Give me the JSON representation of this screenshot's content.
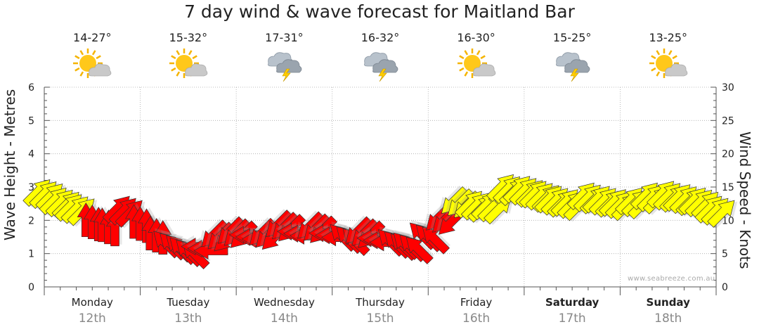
{
  "chart_data": {
    "type": "line",
    "title": "7 day wind & wave forecast for Maitland Bar",
    "ylabel": "Wave Height - Metres",
    "y2label": "Wind Speed - Knots",
    "ylim": [
      0,
      6
    ],
    "y2lim": [
      0,
      30
    ],
    "yticks": [
      "0",
      "1",
      "2",
      "3",
      "4",
      "5",
      "6"
    ],
    "y2ticks": [
      "0",
      "5",
      "10",
      "15",
      "20",
      "25",
      "30"
    ],
    "days": [
      {
        "name": "Monday",
        "date": "12th",
        "temp": "14-27°",
        "icon": "partly-cloudy-sun-icon",
        "bold": false
      },
      {
        "name": "Tuesday",
        "date": "13th",
        "temp": "15-32°",
        "icon": "partly-cloudy-sun-icon",
        "bold": false
      },
      {
        "name": "Wednesday",
        "date": "14th",
        "temp": "17-31°",
        "icon": "thunderstorm-icon",
        "bold": false
      },
      {
        "name": "Thursday",
        "date": "15th",
        "temp": "16-32°",
        "icon": "thunderstorm-icon",
        "bold": false
      },
      {
        "name": "Friday",
        "date": "16th",
        "temp": "16-30°",
        "icon": "partly-cloudy-sun-icon",
        "bold": false
      },
      {
        "name": "Saturday",
        "date": "17th",
        "temp": "15-25°",
        "icon": "thunderstorm-icon",
        "bold": true
      },
      {
        "name": "Sunday",
        "date": "18th",
        "temp": "13-25°",
        "icon": "partly-cloudy-sun-icon",
        "bold": true
      }
    ],
    "series": [
      {
        "name": "Wind arrows (wave height m)",
        "x_day": [
          0.0,
          0.17,
          0.33,
          0.5,
          0.67,
          0.83,
          1.0,
          1.17,
          1.33,
          1.5,
          1.67,
          1.83,
          2.0,
          2.17,
          2.33,
          2.5,
          2.67,
          2.83,
          3.0,
          3.17,
          3.33,
          3.5,
          3.67,
          3.83,
          4.0,
          4.17,
          4.33,
          4.5,
          4.67,
          4.83,
          5.0,
          5.17,
          5.33,
          5.5,
          5.67,
          5.83,
          6.0,
          6.17,
          6.33,
          6.5,
          6.67,
          6.83,
          7.0
        ],
        "values": [
          2.8,
          2.55,
          2.35,
          1.95,
          1.8,
          2.3,
          1.9,
          1.55,
          1.25,
          1.05,
          1.15,
          1.5,
          1.6,
          1.5,
          1.55,
          1.8,
          1.6,
          1.75,
          1.55,
          1.45,
          1.6,
          1.4,
          1.3,
          1.2,
          1.5,
          2.0,
          2.5,
          2.45,
          2.4,
          2.95,
          2.9,
          2.75,
          2.6,
          2.5,
          2.7,
          2.6,
          2.5,
          2.55,
          2.7,
          2.75,
          2.65,
          2.55,
          2.3
        ],
        "wind_knots": [
          14,
          13,
          12,
          9,
          8,
          11,
          10,
          8,
          6,
          5,
          6,
          8,
          8,
          8,
          9,
          9,
          8,
          9,
          8,
          7,
          8,
          7,
          6,
          6,
          7,
          10,
          12,
          13,
          12,
          15,
          15,
          14,
          13,
          12,
          13,
          13,
          12,
          12,
          13,
          14,
          13,
          13,
          12
        ],
        "direction": [
          "SW",
          "SW",
          "SW",
          "S",
          "S",
          "SW",
          "S",
          "S",
          "SE",
          "SE",
          "E",
          "NE",
          "NE",
          "E",
          "NE",
          "NE",
          "E",
          "NE",
          "E",
          "SE",
          "NE",
          "E",
          "SE",
          "SE",
          "SE",
          "NE",
          "NE",
          "SW",
          "SW",
          "SW",
          "SW",
          "SW",
          "SW",
          "SW",
          "SW",
          "SW",
          "SW",
          "SW",
          "SW",
          "SW",
          "SW",
          "SW",
          "SW"
        ]
      }
    ],
    "colors": {
      "strong_wind": "#ffff00",
      "light_wind": "#ff0000",
      "outline": "#333333"
    },
    "credit": "www.seabreeze.com.au"
  }
}
